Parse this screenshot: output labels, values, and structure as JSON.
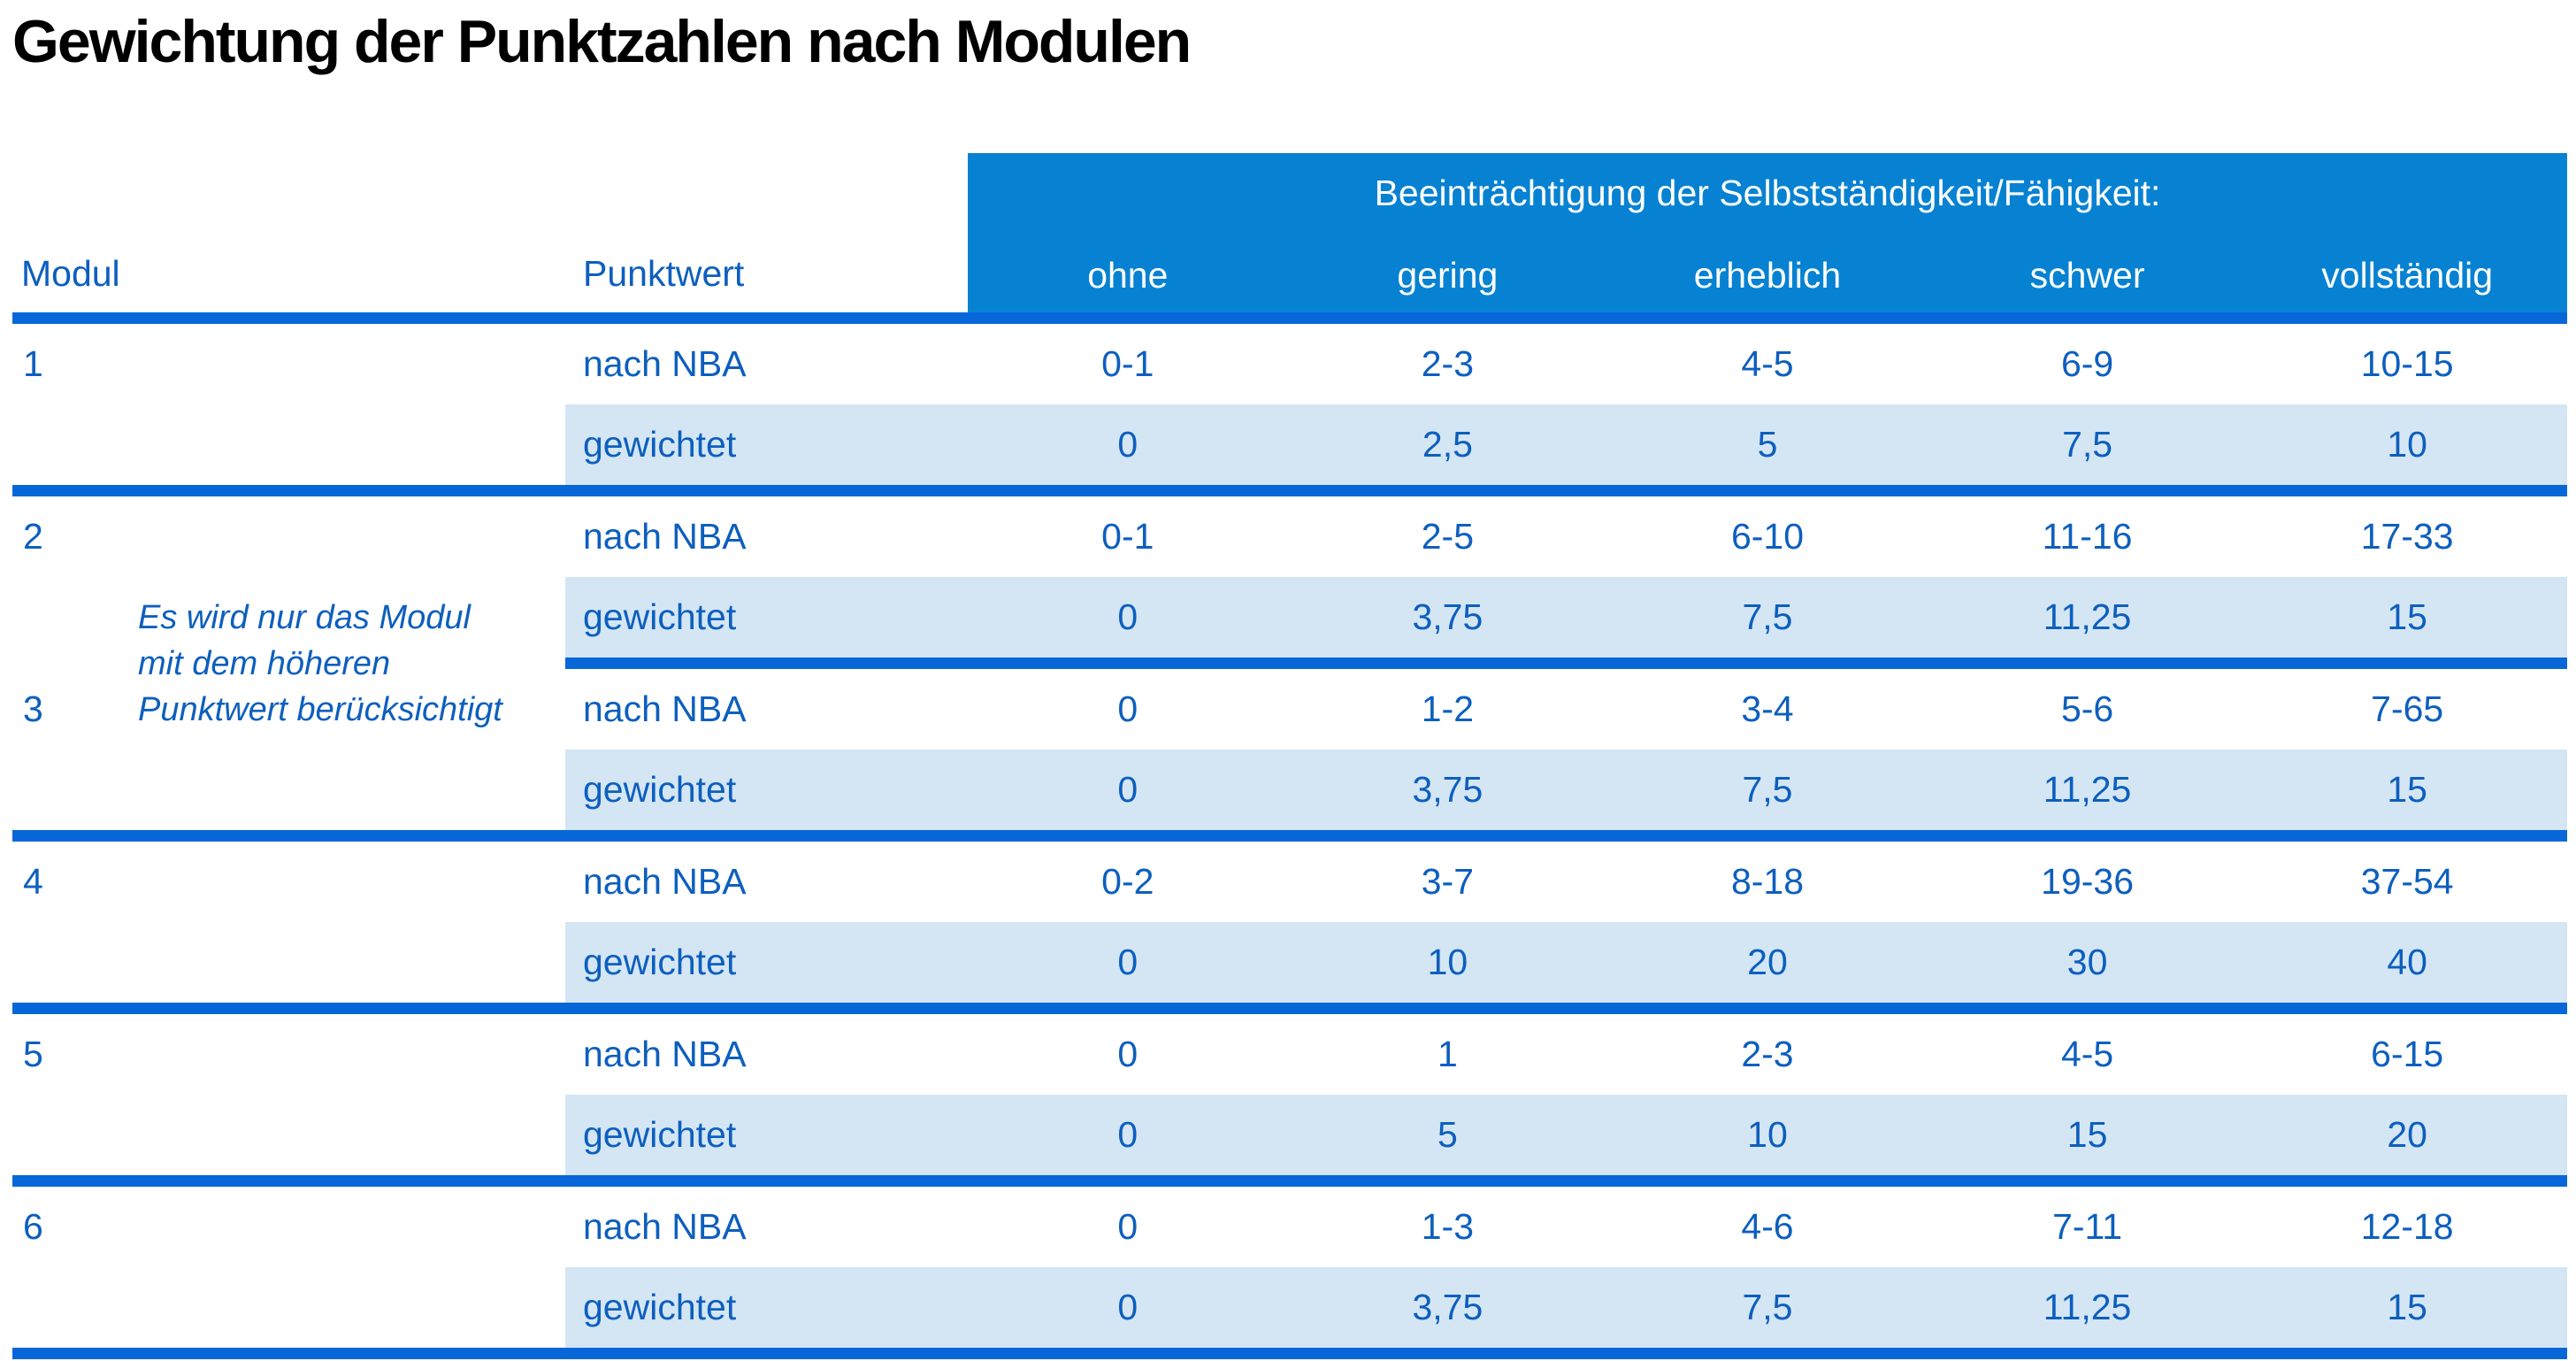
{
  "title": "Gewichtung der Punktzahlen nach Modulen",
  "colors": {
    "banner_blue": "#0782d2",
    "divider_blue": "#0767d9",
    "text_blue": "#0d5fbe",
    "row_highlight": "#d4e6f4",
    "title_color": "#000000"
  },
  "table": {
    "banner_title": "Beeinträchtigung der Selbstständigkeit/Fähigkeit:",
    "severity_levels": [
      "ohne",
      "gering",
      "erheblich",
      "schwer",
      "vollständig"
    ],
    "col_modul": "Modul",
    "col_punktwert": "Punktwert",
    "row_labels": {
      "nba": "nach NBA",
      "weighted": "gewichtet"
    },
    "note_lines": [
      "Es wird nur das Modul",
      "mit dem höheren",
      "Punktwert berücksichtigt"
    ],
    "modules": [
      {
        "id": "1",
        "nba": [
          "0-1",
          "2-3",
          "4-5",
          "6-9",
          "10-15"
        ],
        "weighted": [
          "0",
          "2,5",
          "5",
          "7,5",
          "10"
        ]
      },
      {
        "id": "2",
        "nba": [
          "0-1",
          "2-5",
          "6-10",
          "11-16",
          "17-33"
        ],
        "weighted": [
          "0",
          "3,75",
          "7,5",
          "11,25",
          "15"
        ]
      },
      {
        "id": "3",
        "nba": [
          "0",
          "1-2",
          "3-4",
          "5-6",
          "7-65"
        ],
        "weighted": [
          "0",
          "3,75",
          "7,5",
          "11,25",
          "15"
        ]
      },
      {
        "id": "4",
        "nba": [
          "0-2",
          "3-7",
          "8-18",
          "19-36",
          "37-54"
        ],
        "weighted": [
          "0",
          "10",
          "20",
          "30",
          "40"
        ]
      },
      {
        "id": "5",
        "nba": [
          "0",
          "1",
          "2-3",
          "4-5",
          "6-15"
        ],
        "weighted": [
          "0",
          "5",
          "10",
          "15",
          "20"
        ]
      },
      {
        "id": "6",
        "nba": [
          "0",
          "1-3",
          "4-6",
          "7-11",
          "12-18"
        ],
        "weighted": [
          "0",
          "3,75",
          "7,5",
          "11,25",
          "15"
        ]
      }
    ]
  }
}
